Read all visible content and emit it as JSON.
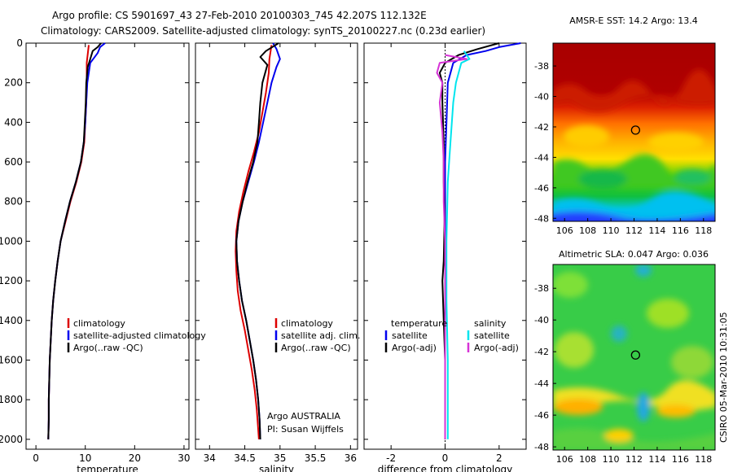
{
  "title_line1": "Argo profile: CS 5901697_43 27-Feb-2010 20100303_745 42.207S 112.132E",
  "title_line2": "Climatology: CARS2009. Satellite-adjusted climatology: synTS_20100227.nc (0.23d earlier)",
  "credit": "CSIRO 05-Mar-2010 10:31:05",
  "colors": {
    "red": "#dd0000",
    "blue": "#0000ee",
    "black": "#000000",
    "cyan": "#00e5ee",
    "magenta": "#d633d6"
  },
  "chart_data": [
    {
      "type": "line",
      "xlabel": "temperature",
      "xlim": [
        -2,
        31
      ],
      "ylim": [
        2050,
        0
      ],
      "xticks": [
        "0",
        "10",
        "20",
        "30"
      ],
      "yticks": [
        "0",
        "200",
        "400",
        "600",
        "800",
        "1000",
        "1200",
        "1400",
        "1600",
        "1800",
        "2000"
      ],
      "legend": [
        "climatology",
        "satellite-adjusted climatology",
        "Argo(..raw -QC)"
      ],
      "series": [
        {
          "name": "climatology",
          "color": "red",
          "points": [
            [
              10.7,
              10
            ],
            [
              10.3,
              100
            ],
            [
              10.3,
              200
            ],
            [
              10.2,
              300
            ],
            [
              10.0,
              400
            ],
            [
              9.8,
              500
            ],
            [
              9.2,
              600
            ],
            [
              8.2,
              700
            ],
            [
              7.0,
              800
            ],
            [
              6.0,
              900
            ],
            [
              5.0,
              1000
            ],
            [
              4.4,
              1100
            ],
            [
              3.9,
              1200
            ],
            [
              3.5,
              1300
            ],
            [
              3.2,
              1400
            ],
            [
              3.0,
              1500
            ],
            [
              2.8,
              1600
            ],
            [
              2.7,
              1700
            ],
            [
              2.6,
              1800
            ],
            [
              2.6,
              1900
            ],
            [
              2.5,
              2000
            ]
          ]
        },
        {
          "name": "satellite-adjusted climatology",
          "color": "blue",
          "points": [
            [
              14.0,
              0
            ],
            [
              13.0,
              20
            ],
            [
              12.5,
              50
            ],
            [
              11.0,
              100
            ],
            [
              10.4,
              200
            ],
            [
              10.2,
              300
            ],
            [
              10.0,
              400
            ],
            [
              9.7,
              500
            ],
            [
              9.1,
              600
            ],
            [
              8.1,
              700
            ],
            [
              6.9,
              800
            ],
            [
              5.9,
              900
            ],
            [
              5.0,
              1000
            ],
            [
              4.4,
              1100
            ],
            [
              3.9,
              1200
            ],
            [
              3.5,
              1300
            ],
            [
              3.2,
              1400
            ],
            [
              3.0,
              1500
            ],
            [
              2.8,
              1600
            ],
            [
              2.7,
              1700
            ],
            [
              2.6,
              1800
            ],
            [
              2.6,
              1900
            ],
            [
              2.5,
              2000
            ]
          ]
        },
        {
          "name": "Argo(..raw -QC)",
          "color": "black",
          "points": [
            [
              13.2,
              0
            ],
            [
              12.5,
              20
            ],
            [
              11.5,
              40
            ],
            [
              11.0,
              80
            ],
            [
              10.5,
              120
            ],
            [
              10.2,
              200
            ],
            [
              10.1,
              300
            ],
            [
              9.9,
              400
            ],
            [
              9.7,
              500
            ],
            [
              9.1,
              600
            ],
            [
              8.1,
              700
            ],
            [
              6.9,
              800
            ],
            [
              5.9,
              900
            ],
            [
              5.0,
              1000
            ],
            [
              4.4,
              1100
            ],
            [
              3.9,
              1200
            ],
            [
              3.5,
              1300
            ],
            [
              3.2,
              1400
            ],
            [
              3.0,
              1500
            ],
            [
              2.8,
              1600
            ],
            [
              2.7,
              1700
            ],
            [
              2.6,
              1800
            ],
            [
              2.6,
              1900
            ],
            [
              2.5,
              2000
            ]
          ]
        }
      ]
    },
    {
      "type": "line",
      "xlabel": "salinity",
      "xlim": [
        33.8,
        36.1
      ],
      "ylim": [
        2050,
        0
      ],
      "xticks": [
        "34",
        "34.5",
        "35",
        "35.5",
        "36"
      ],
      "legend": [
        "climatology",
        "satellite adj. clim.",
        "Argo(..raw -QC)"
      ],
      "annotation": [
        "Argo AUSTRALIA",
        "PI: Susan Wijffels"
      ],
      "series": [
        {
          "name": "climatology",
          "color": "red",
          "points": [
            [
              34.88,
              10
            ],
            [
              34.85,
              80
            ],
            [
              34.84,
              150
            ],
            [
              34.8,
              250
            ],
            [
              34.75,
              350
            ],
            [
              34.7,
              450
            ],
            [
              34.63,
              550
            ],
            [
              34.55,
              650
            ],
            [
              34.48,
              750
            ],
            [
              34.42,
              850
            ],
            [
              34.38,
              950
            ],
            [
              34.37,
              1050
            ],
            [
              34.38,
              1150
            ],
            [
              34.4,
              1250
            ],
            [
              34.44,
              1350
            ],
            [
              34.5,
              1450
            ],
            [
              34.55,
              1550
            ],
            [
              34.6,
              1650
            ],
            [
              34.64,
              1750
            ],
            [
              34.67,
              1850
            ],
            [
              34.7,
              2000
            ]
          ]
        },
        {
          "name": "satellite adj. clim.",
          "color": "blue",
          "points": [
            [
              34.9,
              0
            ],
            [
              34.95,
              30
            ],
            [
              35.0,
              80
            ],
            [
              34.95,
              120
            ],
            [
              34.88,
              200
            ],
            [
              34.82,
              300
            ],
            [
              34.76,
              400
            ],
            [
              34.7,
              500
            ],
            [
              34.63,
              600
            ],
            [
              34.55,
              700
            ],
            [
              34.47,
              800
            ],
            [
              34.41,
              900
            ],
            [
              34.38,
              1000
            ],
            [
              34.39,
              1100
            ],
            [
              34.42,
              1200
            ],
            [
              34.46,
              1300
            ],
            [
              34.52,
              1400
            ],
            [
              34.57,
              1500
            ],
            [
              34.62,
              1600
            ],
            [
              34.66,
              1700
            ],
            [
              34.69,
              1800
            ],
            [
              34.71,
              1900
            ],
            [
              34.72,
              2000
            ]
          ]
        },
        {
          "name": "Argo(..raw -QC)",
          "color": "black",
          "points": [
            [
              34.98,
              0
            ],
            [
              34.8,
              40
            ],
            [
              34.72,
              70
            ],
            [
              34.82,
              110
            ],
            [
              34.75,
              200
            ],
            [
              34.72,
              300
            ],
            [
              34.7,
              400
            ],
            [
              34.68,
              500
            ],
            [
              34.62,
              600
            ],
            [
              34.54,
              700
            ],
            [
              34.47,
              800
            ],
            [
              34.41,
              900
            ],
            [
              34.38,
              1000
            ],
            [
              34.39,
              1100
            ],
            [
              34.42,
              1200
            ],
            [
              34.46,
              1300
            ],
            [
              34.52,
              1400
            ],
            [
              34.57,
              1500
            ],
            [
              34.62,
              1600
            ],
            [
              34.66,
              1700
            ],
            [
              34.69,
              1800
            ],
            [
              34.71,
              1900
            ],
            [
              34.72,
              2000
            ]
          ]
        }
      ]
    },
    {
      "type": "line",
      "xlabel": "difference from climatology",
      "xlim": [
        -3,
        3
      ],
      "ylim": [
        2050,
        0
      ],
      "xticks": [
        "-2",
        "0",
        "2"
      ],
      "legend_temperature": {
        "title": "temperature",
        "items": [
          "satellite",
          "Argo(-adj)"
        ]
      },
      "legend_salinity": {
        "title": "salinity",
        "items": [
          "satellite",
          "Argo(-adj)"
        ]
      },
      "series": [
        {
          "name": "temperature satellite",
          "color": "blue",
          "points": [
            [
              2.8,
              0
            ],
            [
              2.0,
              20
            ],
            [
              1.5,
              40
            ],
            [
              0.8,
              60
            ],
            [
              0.3,
              100
            ],
            [
              0.1,
              200
            ],
            [
              0.05,
              400
            ],
            [
              0.0,
              600
            ],
            [
              0.0,
              800
            ],
            [
              0.0,
              1000
            ],
            [
              0.0,
              1200
            ],
            [
              0.0,
              1400
            ],
            [
              0.0,
              1600
            ],
            [
              0.0,
              1800
            ],
            [
              0.0,
              2000
            ]
          ]
        },
        {
          "name": "temperature Argo(-adj)",
          "color": "black",
          "points": [
            [
              2.0,
              0
            ],
            [
              1.2,
              30
            ],
            [
              0.5,
              60
            ],
            [
              0.0,
              100
            ],
            [
              -0.2,
              150
            ],
            [
              -0.1,
              200
            ],
            [
              -0.1,
              300
            ],
            [
              -0.05,
              500
            ],
            [
              -0.05,
              700
            ],
            [
              -0.02,
              900
            ],
            [
              -0.05,
              1100
            ],
            [
              -0.1,
              1200
            ],
            [
              -0.05,
              1400
            ],
            [
              0.0,
              1600
            ],
            [
              0.0,
              1800
            ],
            [
              0.0,
              2000
            ]
          ]
        },
        {
          "name": "salinity satellite",
          "color": "cyan",
          "points": [
            [
              0.7,
              40
            ],
            [
              0.9,
              80
            ],
            [
              0.6,
              100
            ],
            [
              0.5,
              150
            ],
            [
              0.4,
              200
            ],
            [
              0.3,
              300
            ],
            [
              0.2,
              500
            ],
            [
              0.1,
              700
            ],
            [
              0.05,
              1000
            ],
            [
              0.05,
              1300
            ],
            [
              0.1,
              1600
            ],
            [
              0.1,
              1800
            ],
            [
              0.1,
              2000
            ]
          ]
        },
        {
          "name": "salinity Argo(-adj)",
          "color": "magenta",
          "points": [
            [
              0.0,
              60
            ],
            [
              0.8,
              80
            ],
            [
              -0.2,
              100
            ],
            [
              -0.3,
              150
            ],
            [
              -0.1,
              200
            ],
            [
              -0.2,
              300
            ],
            [
              -0.1,
              450
            ],
            [
              -0.05,
              600
            ],
            [
              -0.05,
              800
            ],
            [
              0.0,
              1000
            ],
            [
              0.0,
              1200
            ],
            [
              0.0,
              1400
            ],
            [
              0.0,
              1600
            ],
            [
              0.0,
              1800
            ],
            [
              0.0,
              2000
            ]
          ]
        }
      ]
    },
    {
      "type": "heatmap",
      "title": "AMSR-E SST: 14.2 Argo: 13.4",
      "xlim": [
        105,
        119
      ],
      "ylim": [
        -48.2,
        -36.5
      ],
      "xticks": [
        "106",
        "108",
        "110",
        "112",
        "114",
        "116",
        "118"
      ],
      "yticks": [
        "-38",
        "-40",
        "-42",
        "-44",
        "-46",
        "-48"
      ],
      "marker": {
        "lon": 112.13,
        "lat": -42.21
      }
    },
    {
      "type": "heatmap",
      "title": "Altimetric SLA: 0.047 Argo: 0.036",
      "xlim": [
        105,
        119
      ],
      "ylim": [
        -48.2,
        -36.5
      ],
      "xticks": [
        "106",
        "108",
        "110",
        "112",
        "114",
        "116",
        "118"
      ],
      "yticks": [
        "-38",
        "-40",
        "-42",
        "-44",
        "-46",
        "-48"
      ],
      "marker": {
        "lon": 112.13,
        "lat": -42.21
      }
    }
  ]
}
